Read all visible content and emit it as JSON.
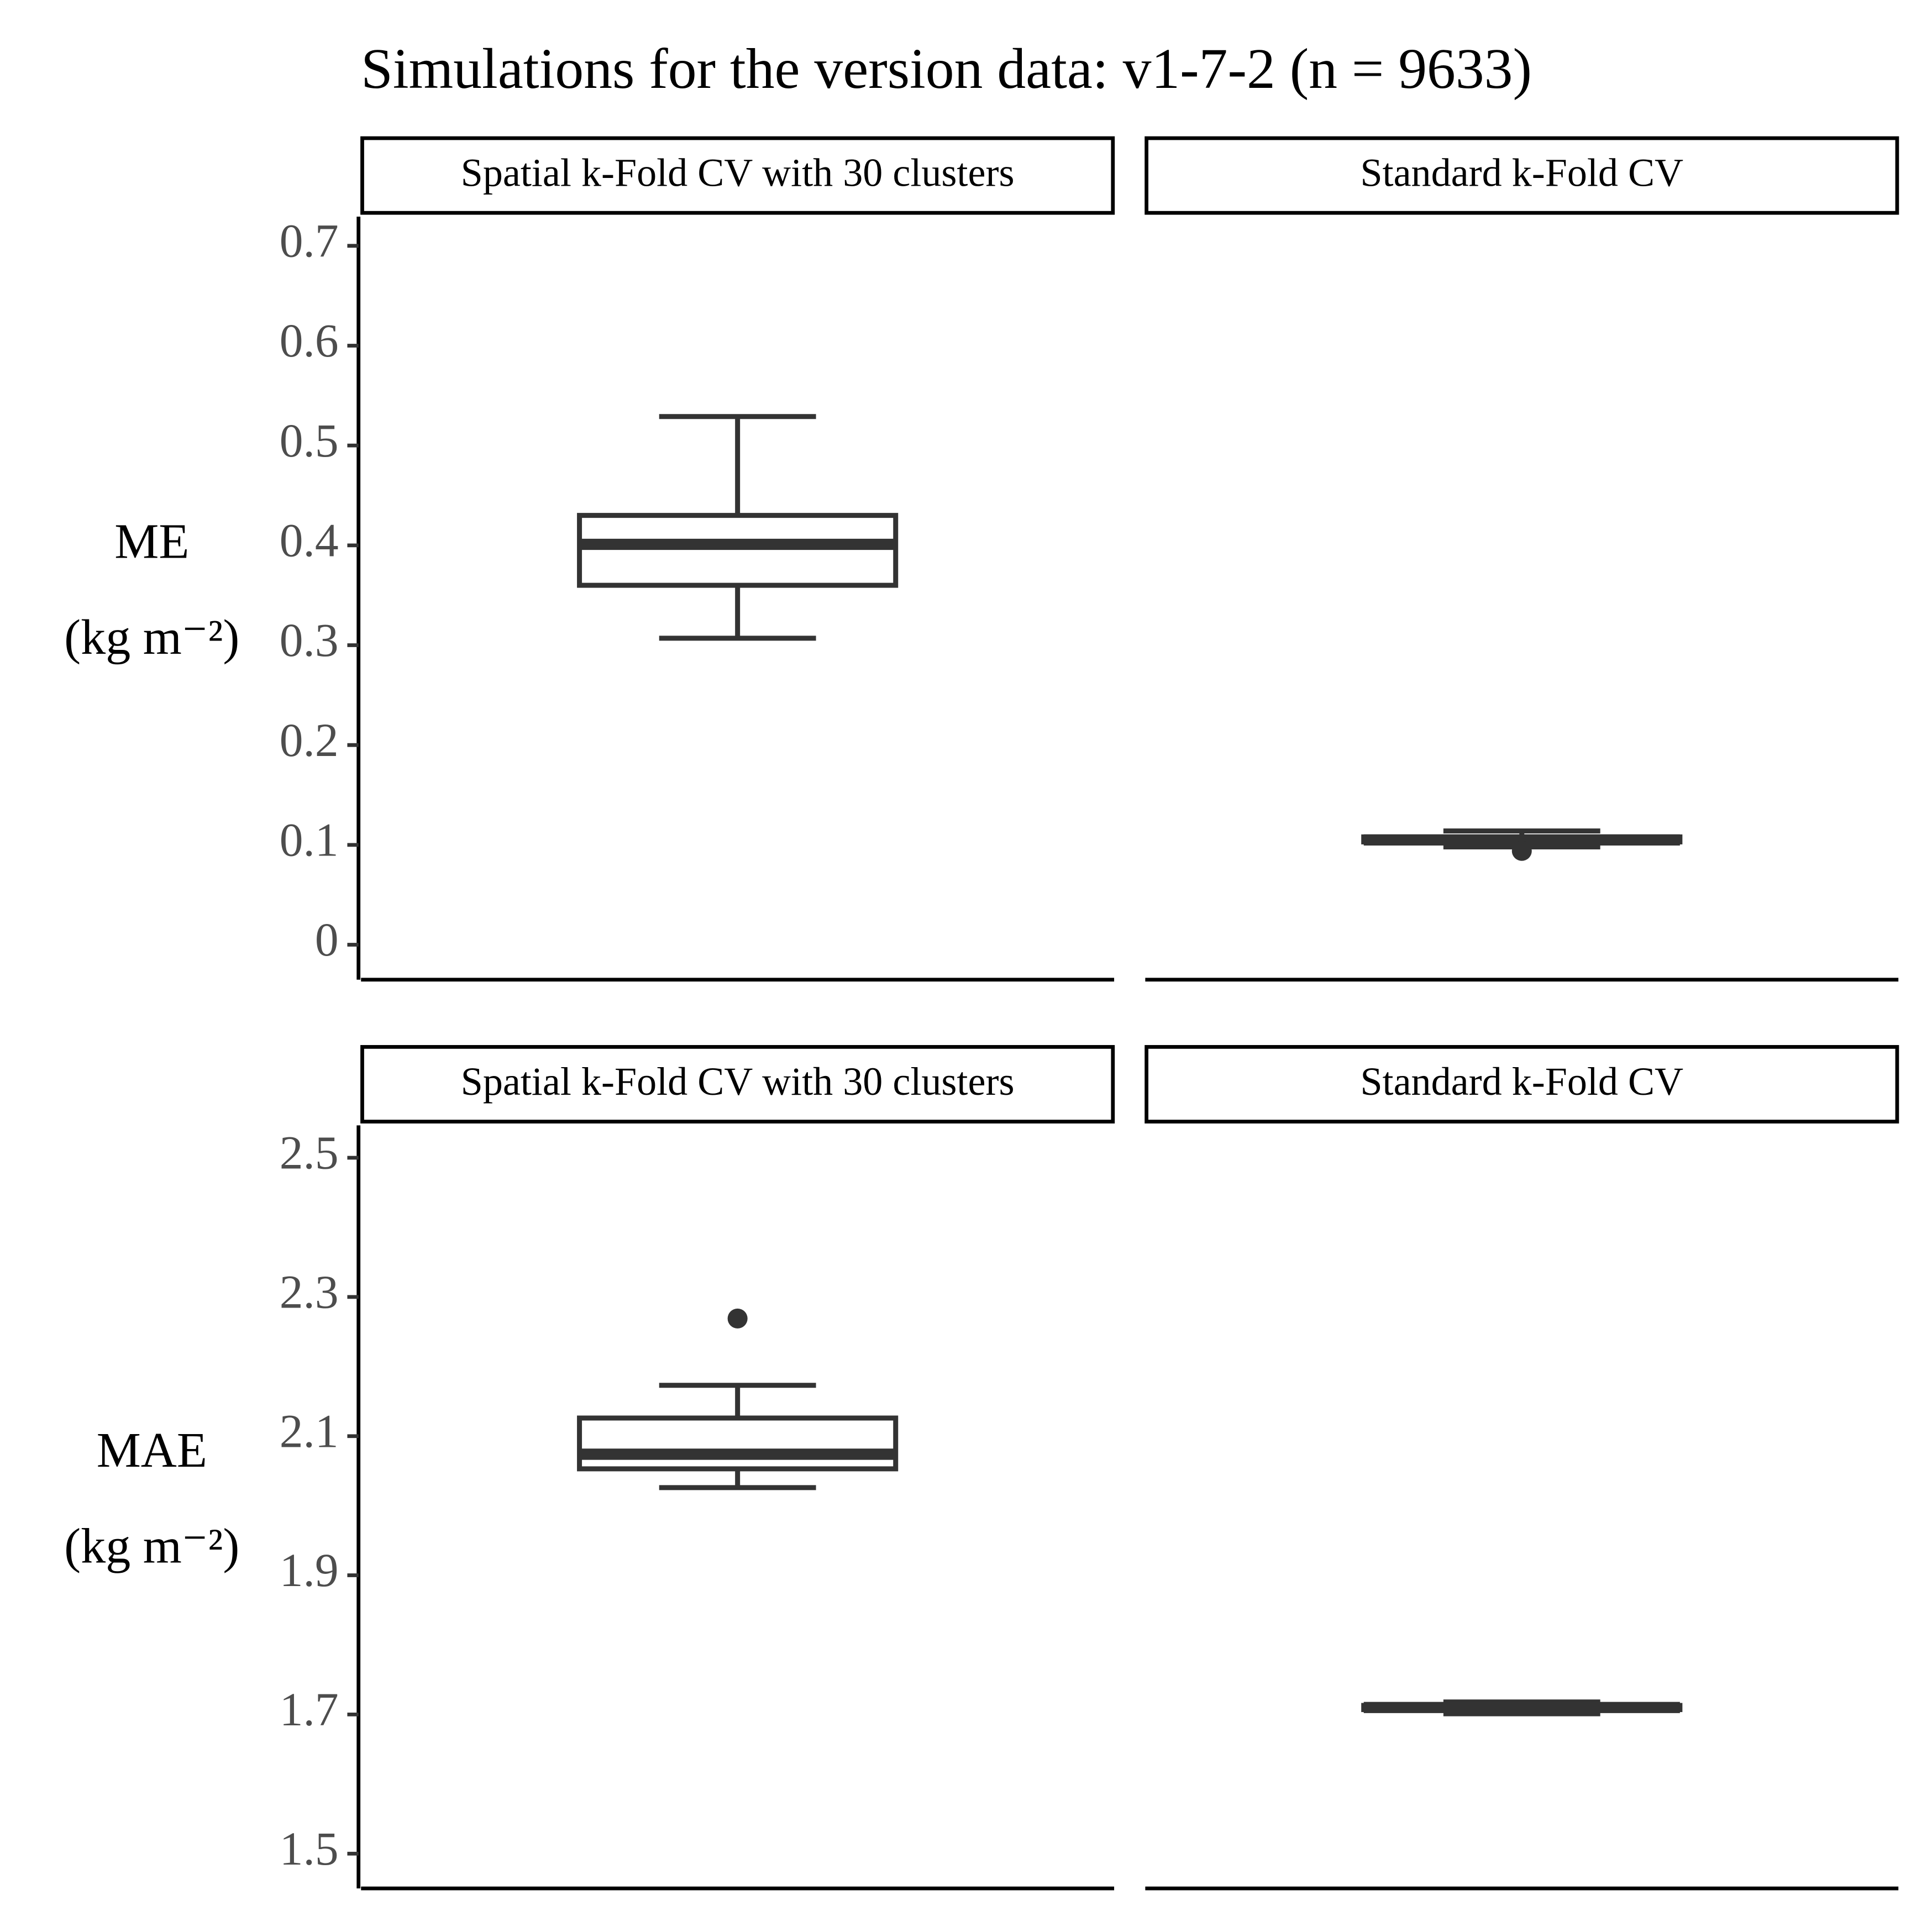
{
  "title": "Simulations for the version data: v1-7-2 (n = 9633)",
  "chart_data": [
    {
      "type": "box",
      "ylabel": [
        "ME",
        "(kg m⁻²)"
      ],
      "ylim": [
        -0.035,
        0.733
      ],
      "yticks": [
        0,
        0.1,
        0.2,
        0.3,
        0.4,
        0.5,
        0.6,
        0.7
      ],
      "color": "#333333",
      "panels": [
        {
          "strip": "Spatial k-Fold CV with 30 clusters",
          "whisker_low": 0.307,
          "q1": 0.36,
          "median": 0.401,
          "q3": 0.43,
          "whisker_high": 0.529,
          "outliers": []
        },
        {
          "strip": "Standard k-Fold CV",
          "whisker_low": 0.098,
          "q1": 0.103,
          "median": 0.105,
          "q3": 0.108,
          "whisker_high": 0.114,
          "outliers": [
            0.094
          ]
        }
      ]
    },
    {
      "type": "box",
      "ylabel": [
        "MAE",
        "(kg m⁻²)"
      ],
      "ylim": [
        1.45,
        2.552
      ],
      "yticks": [
        1.5,
        1.7,
        1.9,
        2.1,
        2.3,
        2.5
      ],
      "color": "#333333",
      "panels": [
        {
          "strip": "Spatial k-Fold CV with 30 clusters",
          "whisker_low": 2.026,
          "q1": 2.053,
          "median": 2.074,
          "q3": 2.126,
          "whisker_high": 2.173,
          "outliers": [
            2.269
          ]
        },
        {
          "strip": "Standard k-Fold CV",
          "whisker_low": 1.701,
          "q1": 1.707,
          "median": 1.71,
          "q3": 1.713,
          "whisker_high": 1.718,
          "outliers": []
        }
      ]
    }
  ]
}
